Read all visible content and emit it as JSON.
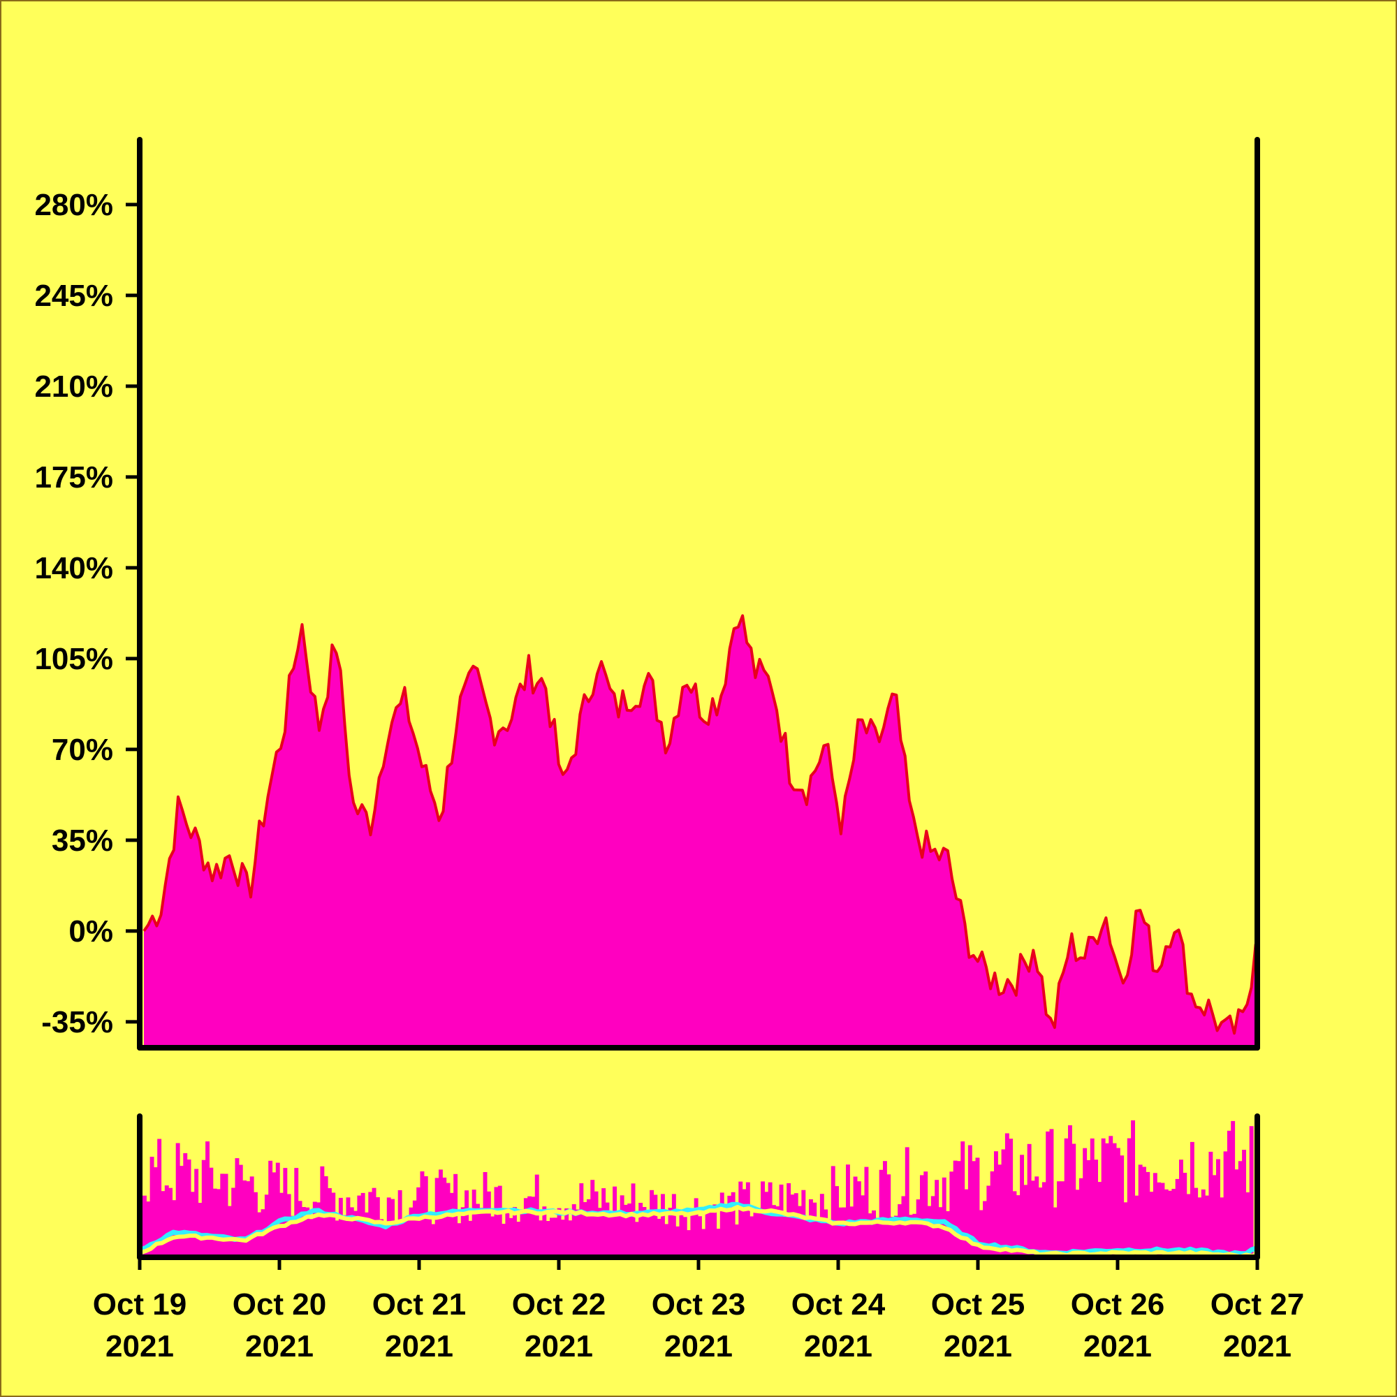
{
  "colors": {
    "background": "#ffff5a",
    "border": "#8a6a1a",
    "area_fill": "#ff00c0",
    "area_line": "#e8001c",
    "axis": "#000000",
    "volume_bars": "#ff00c0",
    "ma_short": "#33eeff",
    "ma_long": "#ffff50"
  },
  "chart_data": [
    {
      "type": "area",
      "title": "",
      "xlabel": "",
      "ylabel": "",
      "ylim": [
        -45,
        305
      ],
      "y_ticks": [
        -35,
        0,
        35,
        70,
        105,
        140,
        175,
        210,
        245,
        280
      ],
      "y_tick_labels": [
        "-35%",
        "0%",
        "35%",
        "70%",
        "105%",
        "140%",
        "175%",
        "210%",
        "245%",
        "280%"
      ],
      "x_range": [
        "2021-10-19",
        "2021-10-27"
      ],
      "x_ticks": [
        "2021-10-19",
        "2021-10-20",
        "2021-10-21",
        "2021-10-22",
        "2021-10-23",
        "2021-10-24",
        "2021-10-25",
        "2021-10-26",
        "2021-10-27"
      ],
      "x_tick_labels": [
        [
          "Oct 19",
          "2021"
        ],
        [
          "Oct 20",
          "2021"
        ],
        [
          "Oct 21",
          "2021"
        ],
        [
          "Oct 22",
          "2021"
        ],
        [
          "Oct 23",
          "2021"
        ],
        [
          "Oct 24",
          "2021"
        ],
        [
          "Oct 25",
          "2021"
        ],
        [
          "Oct 26",
          "2021"
        ],
        [
          "Oct 27",
          "2021"
        ]
      ],
      "series": [
        {
          "x": [
            "2021-10-19 00:00",
            "2021-10-19 03:00",
            "2021-10-19 06:00",
            "2021-10-19 09:00",
            "2021-10-19 12:00",
            "2021-10-19 15:00",
            "2021-10-19 18:00",
            "2021-10-19 21:00",
            "2021-10-20 00:00",
            "2021-10-20 03:00",
            "2021-10-20 06:00",
            "2021-10-20 09:00",
            "2021-10-20 12:00",
            "2021-10-20 15:00",
            "2021-10-20 18:00",
            "2021-10-20 21:00",
            "2021-10-21 00:00",
            "2021-10-21 03:00",
            "2021-10-21 06:00",
            "2021-10-21 09:00",
            "2021-10-21 12:00",
            "2021-10-21 15:00",
            "2021-10-21 18:00",
            "2021-10-21 21:00",
            "2021-10-22 00:00",
            "2021-10-22 03:00",
            "2021-10-22 06:00",
            "2021-10-22 09:00",
            "2021-10-22 12:00",
            "2021-10-22 15:00",
            "2021-10-22 18:00",
            "2021-10-22 21:00",
            "2021-10-23 00:00",
            "2021-10-23 03:00",
            "2021-10-23 06:00",
            "2021-10-23 09:00",
            "2021-10-23 12:00",
            "2021-10-23 15:00",
            "2021-10-23 18:00",
            "2021-10-23 21:00",
            "2021-10-24 00:00",
            "2021-10-24 03:00",
            "2021-10-24 06:00",
            "2021-10-24 09:00",
            "2021-10-24 12:00",
            "2021-10-24 15:00",
            "2021-10-24 18:00",
            "2021-10-24 21:00",
            "2021-10-25 00:00",
            "2021-10-25 03:00",
            "2021-10-25 06:00",
            "2021-10-25 09:00",
            "2021-10-25 12:00",
            "2021-10-25 15:00",
            "2021-10-25 18:00",
            "2021-10-25 21:00",
            "2021-10-26 00:00",
            "2021-10-26 03:00",
            "2021-10-26 06:00",
            "2021-10-26 09:00",
            "2021-10-26 12:00",
            "2021-10-26 15:00",
            "2021-10-26 18:00",
            "2021-10-26 21:00",
            "2021-10-26 23:00"
          ],
          "y": [
            0,
            10,
            48,
            35,
            22,
            30,
            14,
            50,
            78,
            120,
            78,
            112,
            48,
            42,
            80,
            88,
            62,
            44,
            85,
            98,
            78,
            82,
            100,
            95,
            55,
            80,
            105,
            85,
            92,
            95,
            72,
            100,
            85,
            90,
            125,
            100,
            95,
            62,
            55,
            72,
            40,
            80,
            72,
            90,
            40,
            30,
            28,
            0,
            -15,
            -20,
            -18,
            -5,
            -40,
            -5,
            -10,
            8,
            -20,
            10,
            -15,
            5,
            -25,
            -30,
            -40,
            -35,
            -5
          ]
        }
      ]
    },
    {
      "type": "bar",
      "title": "",
      "xlabel": "",
      "ylabel": "",
      "ylim": [
        0,
        100
      ],
      "x_range": [
        "2021-10-19",
        "2021-10-27"
      ],
      "bar_profile": {
        "x": [
          "2021-10-19 00:00",
          "2021-10-19 12:00",
          "2021-10-20 00:00",
          "2021-10-20 12:00",
          "2021-10-21 00:00",
          "2021-10-21 12:00",
          "2021-10-22 00:00",
          "2021-10-22 12:00",
          "2021-10-23 00:00",
          "2021-10-23 12:00",
          "2021-10-24 00:00",
          "2021-10-24 12:00",
          "2021-10-25 00:00",
          "2021-10-25 12:00",
          "2021-10-26 00:00",
          "2021-10-26 12:00",
          "2021-10-27 00:00"
        ],
        "y": [
          72,
          70,
          58,
          52,
          52,
          52,
          50,
          48,
          42,
          48,
          55,
          65,
          72,
          78,
          80,
          85,
          82
        ]
      },
      "series": [
        {
          "name": "",
          "x": [
            "2021-10-19 00:00",
            "2021-10-19 06:00",
            "2021-10-19 12:00",
            "2021-10-19 18:00",
            "2021-10-20 00:00",
            "2021-10-20 06:00",
            "2021-10-20 12:00",
            "2021-10-20 18:00",
            "2021-10-21 00:00",
            "2021-10-21 12:00",
            "2021-10-22 00:00",
            "2021-10-22 12:00",
            "2021-10-23 00:00",
            "2021-10-23 06:00",
            "2021-10-23 12:00",
            "2021-10-24 00:00",
            "2021-10-24 12:00",
            "2021-10-24 18:00",
            "2021-10-25 00:00",
            "2021-10-25 12:00",
            "2021-10-26 00:00",
            "2021-10-26 12:00",
            "2021-10-26 22:00",
            "2021-10-27 00:00"
          ],
          "y": [
            5,
            18,
            15,
            12,
            25,
            33,
            28,
            22,
            30,
            34,
            32,
            31,
            33,
            38,
            32,
            24,
            27,
            25,
            10,
            3,
            5,
            5,
            2,
            7
          ]
        },
        {
          "name": "",
          "x": [
            "2021-10-19 00:00",
            "2021-10-19 06:00",
            "2021-10-19 12:00",
            "2021-10-19 18:00",
            "2021-10-20 00:00",
            "2021-10-20 06:00",
            "2021-10-20 12:00",
            "2021-10-20 18:00",
            "2021-10-21 00:00",
            "2021-10-21 12:00",
            "2021-10-22 00:00",
            "2021-10-22 12:00",
            "2021-10-23 00:00",
            "2021-10-23 06:00",
            "2021-10-23 12:00",
            "2021-10-24 00:00",
            "2021-10-24 12:00",
            "2021-10-24 18:00",
            "2021-10-25 00:00",
            "2021-10-25 12:00",
            "2021-10-26 00:00",
            "2021-10-26 12:00",
            "2021-10-26 22:00",
            "2021-10-27 00:00"
          ],
          "y": [
            3,
            15,
            14,
            12,
            22,
            30,
            28,
            24,
            28,
            32,
            32,
            30,
            31,
            35,
            33,
            24,
            25,
            22,
            8,
            2,
            3,
            3,
            1,
            2
          ]
        }
      ]
    }
  ]
}
